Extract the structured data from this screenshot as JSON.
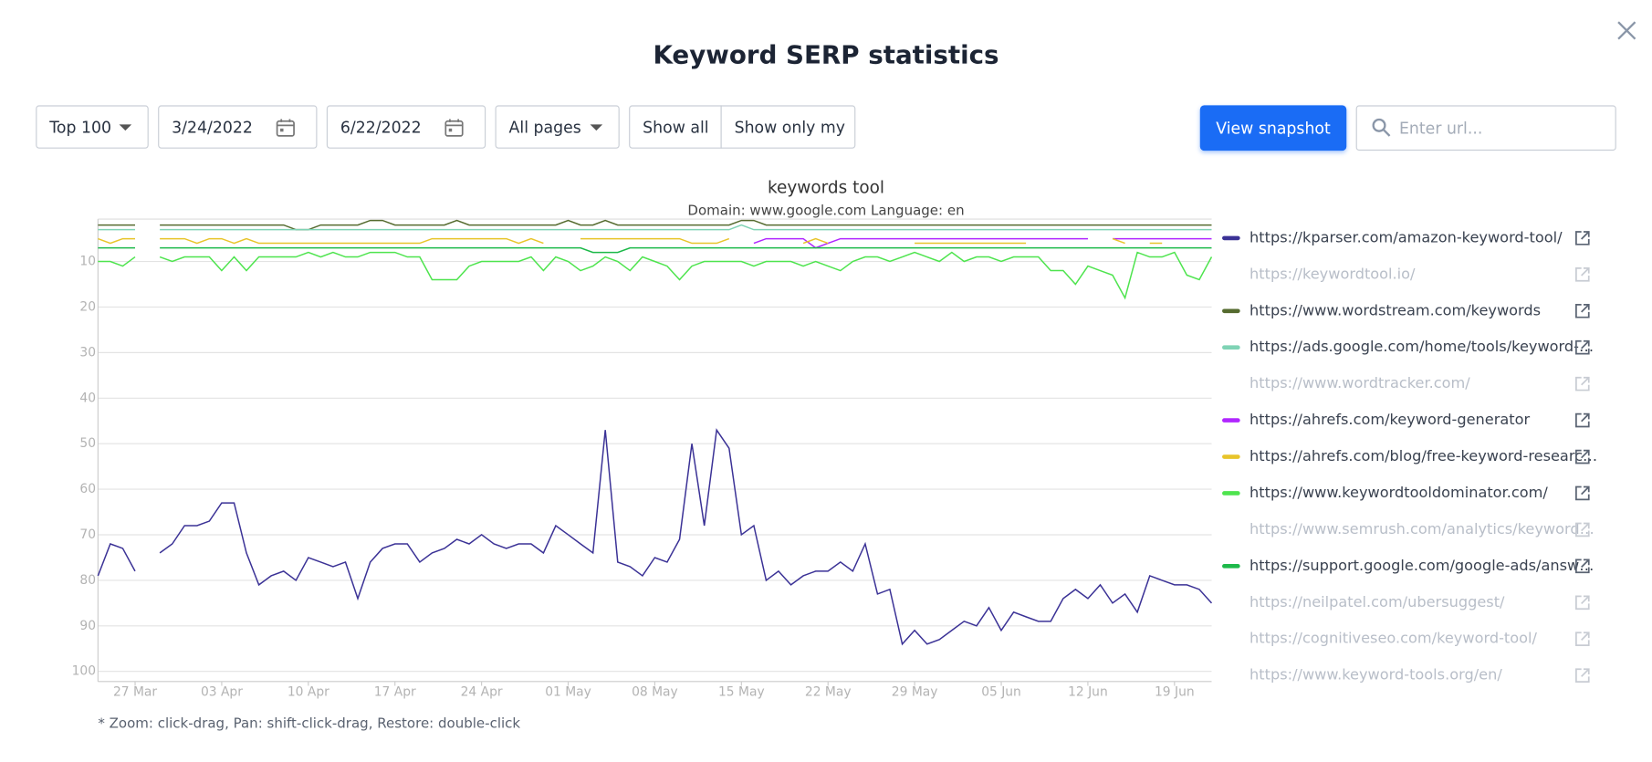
{
  "ui": {
    "title": "Keyword SERP statistics",
    "range": "Top 100",
    "date_from": "3/24/2022",
    "date_to": "6/22/2022",
    "pages": "All pages",
    "show_all": "Show all",
    "show_only_my": "Show only my",
    "snapshot": "View snapshot",
    "search_placeholder": "Enter url...",
    "footnote": "* Zoom: click-drag, Pan: shift-click-drag, Restore: double-click"
  },
  "chart_data": {
    "type": "line",
    "title": "keywords tool",
    "subtitle": "Domain: www.google.com Language: en",
    "y_inverted": true,
    "grid": true,
    "ylim": [
      0,
      102
    ],
    "yticks": [
      10,
      20,
      30,
      40,
      50,
      60,
      70,
      80,
      90,
      100
    ],
    "xlim": [
      "2022-03-24",
      "2022-06-22"
    ],
    "xticks": [
      {
        "value": "2022-03-27",
        "label": "27 Mar"
      },
      {
        "value": "2022-04-03",
        "label": "03 Apr"
      },
      {
        "value": "2022-04-10",
        "label": "10 Apr"
      },
      {
        "value": "2022-04-17",
        "label": "17 Apr"
      },
      {
        "value": "2022-04-24",
        "label": "24 Apr"
      },
      {
        "value": "2022-05-01",
        "label": "01 May"
      },
      {
        "value": "2022-05-08",
        "label": "08 May"
      },
      {
        "value": "2022-05-15",
        "label": "15 May"
      },
      {
        "value": "2022-05-22",
        "label": "22 May"
      },
      {
        "value": "2022-05-29",
        "label": "29 May"
      },
      {
        "value": "2022-06-05",
        "label": "05 Jun"
      },
      {
        "value": "2022-06-12",
        "label": "12 Jun"
      },
      {
        "value": "2022-06-19",
        "label": "19 Jun"
      }
    ],
    "x": [
      "2022-03-24",
      "2022-03-25",
      "2022-03-26",
      "2022-03-27",
      "2022-03-28",
      "2022-03-29",
      "2022-03-30",
      "2022-03-31",
      "2022-04-01",
      "2022-04-02",
      "2022-04-03",
      "2022-04-04",
      "2022-04-05",
      "2022-04-06",
      "2022-04-07",
      "2022-04-08",
      "2022-04-09",
      "2022-04-10",
      "2022-04-11",
      "2022-04-12",
      "2022-04-13",
      "2022-04-14",
      "2022-04-15",
      "2022-04-16",
      "2022-04-17",
      "2022-04-18",
      "2022-04-19",
      "2022-04-20",
      "2022-04-21",
      "2022-04-22",
      "2022-04-23",
      "2022-04-24",
      "2022-04-25",
      "2022-04-26",
      "2022-04-27",
      "2022-04-28",
      "2022-04-29",
      "2022-04-30",
      "2022-05-01",
      "2022-05-02",
      "2022-05-03",
      "2022-05-04",
      "2022-05-05",
      "2022-05-06",
      "2022-05-07",
      "2022-05-08",
      "2022-05-09",
      "2022-05-10",
      "2022-05-11",
      "2022-05-12",
      "2022-05-13",
      "2022-05-14",
      "2022-05-15",
      "2022-05-16",
      "2022-05-17",
      "2022-05-18",
      "2022-05-19",
      "2022-05-20",
      "2022-05-21",
      "2022-05-22",
      "2022-05-23",
      "2022-05-24",
      "2022-05-25",
      "2022-05-26",
      "2022-05-27",
      "2022-05-28",
      "2022-05-29",
      "2022-05-30",
      "2022-05-31",
      "2022-06-01",
      "2022-06-02",
      "2022-06-03",
      "2022-06-04",
      "2022-06-05",
      "2022-06-06",
      "2022-06-07",
      "2022-06-08",
      "2022-06-09",
      "2022-06-10",
      "2022-06-11",
      "2022-06-12",
      "2022-06-13",
      "2022-06-14",
      "2022-06-15",
      "2022-06-16",
      "2022-06-17",
      "2022-06-18",
      "2022-06-19",
      "2022-06-20",
      "2022-06-21",
      "2022-06-22"
    ],
    "series": [
      {
        "name": "https://kparser.com/amazon-keyword-tool/",
        "color": "#3b3296",
        "values": [
          79,
          72,
          73,
          78,
          null,
          74,
          72,
          68,
          68,
          67,
          63,
          63,
          74,
          81,
          79,
          78,
          80,
          75,
          76,
          77,
          76,
          84,
          76,
          73,
          72,
          72,
          76,
          74,
          73,
          71,
          72,
          70,
          72,
          73,
          72,
          72,
          74,
          68,
          70,
          72,
          74,
          47,
          76,
          77,
          79,
          75,
          76,
          71,
          50,
          68,
          47,
          51,
          70,
          68,
          80,
          78,
          81,
          79,
          78,
          78,
          76,
          78,
          72,
          83,
          82,
          94,
          91,
          94,
          93,
          91,
          89,
          90,
          86,
          91,
          87,
          88,
          89,
          89,
          84,
          82,
          84,
          81,
          85,
          83,
          87,
          79,
          80,
          81,
          81,
          82,
          85
        ]
      },
      {
        "name": "https://keywordtool.io/",
        "hidden": true
      },
      {
        "name": "https://www.wordstream.com/keywords",
        "color": "#556b2f",
        "values": [
          2,
          2,
          2,
          2,
          null,
          2,
          2,
          2,
          2,
          2,
          2,
          2,
          2,
          2,
          2,
          2,
          3,
          3,
          2,
          2,
          2,
          2,
          1,
          1,
          2,
          2,
          2,
          2,
          2,
          1,
          2,
          2,
          2,
          2,
          2,
          2,
          2,
          2,
          1,
          2,
          2,
          1,
          2,
          2,
          2,
          2,
          2,
          2,
          2,
          2,
          2,
          2,
          1,
          1,
          2,
          2,
          2,
          2,
          2,
          2,
          2,
          2,
          2,
          2,
          2,
          2,
          2,
          2,
          2,
          2,
          2,
          2,
          2,
          2,
          2,
          2,
          2,
          2,
          2,
          2,
          2,
          2,
          2,
          2,
          2,
          2,
          2,
          2,
          2,
          2,
          2
        ]
      },
      {
        "name": "https://ads.google.com/home/tools/keyword-…",
        "color": "#7fd3b5",
        "values": [
          3,
          3,
          3,
          3,
          null,
          3,
          3,
          3,
          3,
          3,
          3,
          3,
          3,
          3,
          3,
          3,
          3,
          3,
          3,
          3,
          3,
          3,
          3,
          3,
          3,
          3,
          3,
          3,
          3,
          3,
          3,
          3,
          3,
          3,
          3,
          3,
          3,
          3,
          3,
          3,
          3,
          3,
          3,
          3,
          3,
          3,
          3,
          3,
          3,
          3,
          3,
          3,
          2,
          3,
          3,
          3,
          3,
          3,
          3,
          3,
          3,
          3,
          3,
          3,
          3,
          3,
          3,
          3,
          3,
          3,
          3,
          3,
          3,
          3,
          3,
          3,
          3,
          3,
          3,
          3,
          3,
          3,
          3,
          3,
          3,
          3,
          3,
          3,
          3,
          3,
          3
        ]
      },
      {
        "name": "https://www.wordtracker.com/",
        "hidden": true
      },
      {
        "name": "https://ahrefs.com/keyword-generator",
        "color": "#b026ff",
        "values": [
          null,
          null,
          null,
          null,
          null,
          null,
          null,
          null,
          null,
          null,
          null,
          null,
          null,
          null,
          null,
          null,
          null,
          null,
          null,
          null,
          null,
          null,
          null,
          null,
          null,
          null,
          null,
          null,
          null,
          null,
          null,
          null,
          null,
          null,
          null,
          null,
          null,
          null,
          null,
          null,
          null,
          null,
          null,
          null,
          null,
          null,
          null,
          null,
          null,
          null,
          null,
          null,
          null,
          6,
          5,
          5,
          5,
          5,
          7,
          6,
          5,
          5,
          5,
          5,
          5,
          5,
          5,
          5,
          5,
          5,
          5,
          5,
          5,
          5,
          5,
          5,
          5,
          5,
          5,
          5,
          5,
          null,
          5,
          5,
          5,
          5,
          5,
          5,
          5,
          5,
          5
        ]
      },
      {
        "name": "https://ahrefs.com/blog/free-keyword-researc…",
        "color": "#e8c42a",
        "values": [
          5,
          6,
          5,
          5,
          null,
          5,
          5,
          5,
          6,
          5,
          5,
          6,
          5,
          6,
          6,
          6,
          6,
          6,
          6,
          6,
          6,
          6,
          6,
          6,
          6,
          6,
          6,
          5,
          5,
          5,
          5,
          5,
          5,
          5,
          6,
          5,
          6,
          null,
          null,
          5,
          5,
          5,
          5,
          5,
          5,
          5,
          5,
          5,
          6,
          6,
          6,
          5,
          null,
          null,
          null,
          null,
          null,
          6,
          5,
          6,
          null,
          null,
          null,
          null,
          null,
          null,
          6,
          6,
          6,
          6,
          6,
          6,
          6,
          6,
          6,
          6,
          null,
          null,
          null,
          null,
          null,
          null,
          5,
          6,
          null,
          6,
          6,
          null,
          null,
          null,
          null
        ]
      },
      {
        "name": "https://www.keywordtooldominator.com/",
        "color": "#4ee44e",
        "values": [
          10,
          10,
          11,
          9,
          null,
          9,
          10,
          9,
          9,
          9,
          12,
          9,
          12,
          9,
          9,
          9,
          9,
          8,
          9,
          8,
          9,
          9,
          8,
          8,
          8,
          9,
          9,
          14,
          14,
          14,
          11,
          10,
          10,
          10,
          10,
          9,
          12,
          9,
          10,
          12,
          11,
          9,
          10,
          12,
          9,
          10,
          11,
          14,
          11,
          10,
          10,
          10,
          10,
          11,
          10,
          10,
          10,
          11,
          10,
          11,
          12,
          10,
          9,
          9,
          10,
          9,
          8,
          9,
          10,
          8,
          10,
          9,
          9,
          10,
          9,
          9,
          9,
          12,
          12,
          15,
          11,
          12,
          13,
          18,
          8,
          9,
          9,
          8,
          13,
          14,
          9
        ]
      },
      {
        "name": "https://www.semrush.com/analytics/keyword…",
        "hidden": true
      },
      {
        "name": "https://support.google.com/google-ads/answ…",
        "color": "#1db94a",
        "values": [
          7,
          7,
          7,
          7,
          null,
          7,
          7,
          7,
          7,
          7,
          7,
          7,
          7,
          7,
          7,
          7,
          7,
          7,
          7,
          7,
          7,
          7,
          7,
          7,
          7,
          7,
          7,
          7,
          7,
          7,
          7,
          7,
          7,
          7,
          7,
          7,
          7,
          7,
          7,
          7,
          8,
          8,
          8,
          7,
          7,
          7,
          7,
          7,
          7,
          7,
          7,
          7,
          7,
          7,
          7,
          7,
          7,
          7,
          7,
          7,
          7,
          7,
          7,
          7,
          7,
          7,
          7,
          7,
          7,
          7,
          7,
          7,
          7,
          7,
          7,
          7,
          7,
          7,
          7,
          7,
          7,
          7,
          7,
          7,
          7,
          7,
          7,
          7,
          7,
          7,
          7
        ]
      },
      {
        "name": "https://neilpatel.com/ubersuggest/",
        "hidden": true
      },
      {
        "name": "https://cognitiveseo.com/keyword-tool/",
        "hidden": true
      },
      {
        "name": "https://www.keyword-tools.org/en/",
        "hidden": true
      }
    ]
  }
}
